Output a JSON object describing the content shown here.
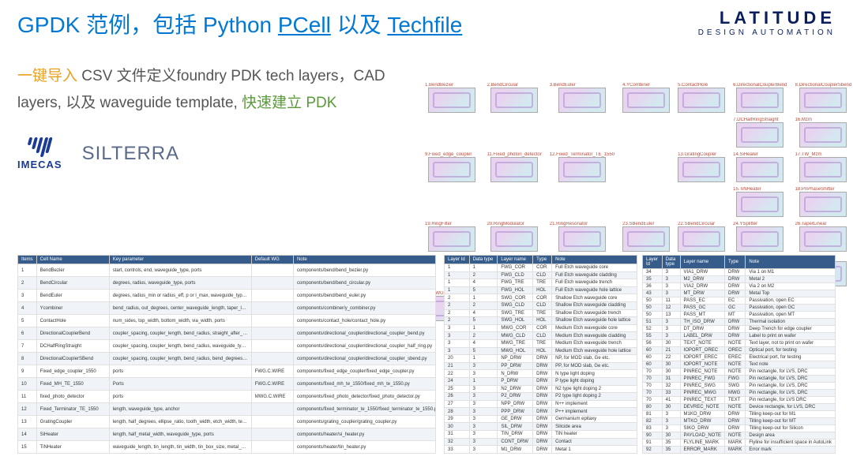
{
  "title_parts": {
    "p1": "GPDK 范例，包括 Python ",
    "p2": "PCell",
    "p3": " 以及 ",
    "p4": "Techfile"
  },
  "logo": {
    "main": "LATITUDE",
    "sub": "DESIGN AUTOMATION"
  },
  "subtitle_parts": {
    "s1": "一键导入",
    "s2": " CSV 文件定义foundry PDK tech layers，CAD layers, 以及 waveguide template, ",
    "s3": "快速建立 PDK"
  },
  "partners": {
    "imecas": "IMECAS",
    "silterra": "SILTERRA"
  },
  "thumbs": [
    "1.BendBezier",
    "2.BendCircular",
    "3.BendEuler",
    "4.YCombiner",
    "5.ContactHole",
    "6.DirectionalCouplerBend",
    "8.DirectionalCouplerSbend",
    "",
    "",
    "",
    "",
    "",
    "7.DCHalfRingStraight",
    "16.Mzm",
    "9.Fixed_edge_coupler",
    "11.Fixed_photon_detector",
    "12.Fixed_Terminator_TE_1550",
    "",
    "13.GratingCoupler",
    "14.SiHeater",
    "17.TW_Mzm",
    "",
    "",
    "",
    "",
    "",
    "15.TiNHeater",
    "18.PnPhaseShifter",
    "19.RingFilter",
    "20.RingModulator",
    "21.RingResonator",
    "23.SBendEuler",
    "22.SBendCircular",
    "24.YSplitter",
    "26.TaperLinear",
    "",
    "",
    "",
    "",
    "",
    "",
    "27.TaperParabolic",
    "28.MWG2MWGTransition",
    "29.FWG2SWGTransition",
    "30.SWG2MWGTransition",
    "",
    "31.CompScan",
    "32.HFanout",
    ""
  ],
  "table1_headers": [
    "Items",
    "Cell Name",
    "Key parameter",
    "Default WG",
    "Note"
  ],
  "table1_rows": [
    [
      "1",
      "BendBezier",
      "start, controls, end, waveguide_type, ports",
      "",
      "components/bend/bend_bezier.py"
    ],
    [
      "2",
      "BendCircular",
      "degrees, radius, waveguide_type, ports",
      "",
      "components/bend/bend_circular.py"
    ],
    [
      "3",
      "BendEuler",
      "degrees, radius_min or radius_eff, p or l_max, waveguide_type, ports",
      "",
      "components/bend/bend_euler.py"
    ],
    [
      "4",
      "Ycombiner",
      "bend_radius, out_degrees, center_waveguide_length, taper_length, waveguide_type, ports",
      "",
      "components/combiner/y_combiner.py"
    ],
    [
      "5",
      "ContactHole",
      "num_sides, top_width, bottom_width, via_width, ports",
      "",
      "components/contact_hole/contact_hole.py"
    ],
    [
      "6",
      "DirectionalCouplerBend",
      "coupler_spacing, coupler_length, bend_radius, straight_after_bend, waveguide_type, ports",
      "",
      "components/directional_coupler/directional_coupler_bend.py"
    ],
    [
      "7",
      "DCHalfRingStraight",
      "coupler_spacing, coupler_length, bend_radius, waveguide_type, ports",
      "",
      "components/directional_coupler/directional_coupler_half_ring.py"
    ],
    [
      "8",
      "DirectionalCouplerSBend",
      "coupler_spacing, coupler_length, bend_radius, bend_degrees, straight_after_bend, waveguide_type, ports",
      "",
      "components/directional_coupler/directional_coupler_sbend.py"
    ],
    [
      "9",
      "Fixed_edge_coupler_1550",
      "ports",
      "FWG.C.WIRE",
      "components/fixed_edge_coupler/fixed_edge_coupler.py"
    ],
    [
      "10",
      "Fixed_MH_TE_1550",
      "Ports",
      "FWG.C.WIRE",
      "components/fixed_mh_te_1550/fixed_mh_te_1550.py"
    ],
    [
      "11",
      "fixed_photo_detector",
      "ports",
      "MWG.C.WIRE",
      "components/fixed_photo_detector/fixed_photo_detector.py"
    ],
    [
      "12",
      "Fixed_Terminator_TE_1550",
      "length, waveguide_type, anchor",
      "",
      "components/fixed_terminator_te_1550/fixed_terminator_te_1550.py"
    ],
    [
      "13",
      "GratingCoupler",
      "length, half_degrees, ellipse_ratio, tooth_width, etch_width, teeth, waveguide_type, ports",
      "",
      "components/grating_coupler/grating_coupler.py"
    ],
    [
      "14",
      "SiHeater",
      "length, half_metal_width, waveguide_type, ports",
      "",
      "components/heater/si_heater.py"
    ],
    [
      "15",
      "TiNHeater",
      "waveguide_length, tin_length, tin_width, tin_box_size, metal_box_size, contact_box_size, waveguide_type, ports",
      "",
      "components/heater/tin_heater.py"
    ]
  ],
  "table2_headers": [
    "Layer Id",
    "Data type",
    "Layer name",
    "Type",
    "Note"
  ],
  "table2a_rows": [
    [
      "1",
      "1",
      "FWG_COR",
      "COR",
      "Full Etch waveguide core"
    ],
    [
      "1",
      "2",
      "FWG_CLD",
      "CLD",
      "Full Etch waveguide cladding"
    ],
    [
      "1",
      "4",
      "FWG_TRE",
      "TRE",
      "Full Etch waveguide trench"
    ],
    [
      "1",
      "5",
      "FWG_HOL",
      "HOL",
      "Full Etch waveguide hole lattice"
    ],
    [
      "2",
      "1",
      "SWG_COR",
      "COR",
      "Shallow Etch waveguide core"
    ],
    [
      "2",
      "2",
      "SWG_CLD",
      "CLD",
      "Shallow Etch waveguide cladding"
    ],
    [
      "2",
      "4",
      "SWG_TRE",
      "TRE",
      "Shallow Etch waveguide trench"
    ],
    [
      "2",
      "5",
      "SWG_HOL",
      "HOL",
      "Shallow Etch waveguide hole lattice"
    ],
    [
      "3",
      "1",
      "MWG_COR",
      "COR",
      "Medium Etch waveguide core"
    ],
    [
      "3",
      "2",
      "MWG_CLD",
      "CLD",
      "Medium Etch waveguide cladding"
    ],
    [
      "3",
      "4",
      "MWG_TRE",
      "TRE",
      "Medium Etch waveguide trench"
    ],
    [
      "3",
      "5",
      "MWG_HOL",
      "HOL",
      "Medium Etch waveguide hole lattice"
    ],
    [
      "20",
      "1",
      "NP_DRW",
      "DRW",
      "NP, for MOD slab, Ge etc."
    ],
    [
      "21",
      "3",
      "PP_DRW",
      "DRW",
      "PP, for MOD slab, Ge etc."
    ],
    [
      "22",
      "3",
      "N_DRW",
      "DRW",
      "N type light doping"
    ],
    [
      "24",
      "1",
      "P_DRW",
      "DRW",
      "P type light doping"
    ],
    [
      "25",
      "3",
      "N2_DRW",
      "DRW",
      "N2 type light doping 2"
    ],
    [
      "26",
      "3",
      "P2_DRW",
      "DRW",
      "P2 type light doping 2"
    ],
    [
      "27",
      "3",
      "NPP_DRW",
      "DRW",
      "N++ implement"
    ],
    [
      "28",
      "3",
      "PPP_DRW",
      "DRW",
      "P++ implement"
    ],
    [
      "29",
      "3",
      "GE_DRW",
      "DRW",
      "Germanium epitaxy"
    ],
    [
      "30",
      "3",
      "SIL_DRW",
      "DRW",
      "Silicide area"
    ],
    [
      "31",
      "3",
      "TIN_DRW",
      "DRW",
      "TiN heater"
    ],
    [
      "32",
      "3",
      "CONT_DRW",
      "DRW",
      "Contact"
    ],
    [
      "33",
      "3",
      "M1_DRW",
      "DRW",
      "Metal 1"
    ]
  ],
  "table2b_rows": [
    [
      "34",
      "3",
      "VIA1_DRW",
      "DRW",
      "Via 1 on M1"
    ],
    [
      "35",
      "3",
      "M2_DRW",
      "DRW",
      "Metal 2"
    ],
    [
      "36",
      "3",
      "VIA2_DRW",
      "DRW",
      "Via 2 on M2"
    ],
    [
      "43",
      "3",
      "MT_DRW",
      "DRW",
      "Metal Top"
    ],
    [
      "50",
      "11",
      "PASS_EC",
      "EC",
      "Passivation, open EC"
    ],
    [
      "50",
      "12",
      "PASS_GC",
      "GC",
      "Passivation, open GC"
    ],
    [
      "50",
      "13",
      "PASS_MT",
      "MT",
      "Passivation, open MT"
    ],
    [
      "51",
      "3",
      "TH_ISO_DRW",
      "DRW",
      "Thermal isolation"
    ],
    [
      "52",
      "3",
      "DT_DRW",
      "DRW",
      "Deep Trench for edge coupler"
    ],
    [
      "55",
      "3",
      "LABEL_DRW",
      "DRW",
      "Label to print on wafer"
    ],
    [
      "56",
      "30",
      "TEXT_NOTE",
      "NOTE",
      "Text layer, not to print on wafer"
    ],
    [
      "60",
      "21",
      "IOPORT_OREC",
      "OREC",
      "Optical port, for testing"
    ],
    [
      "60",
      "22",
      "IOPORT_EREC",
      "EREC",
      "Electrical port, for testing"
    ],
    [
      "60",
      "30",
      "IOPORT_NOTE",
      "NOTE",
      "Text note"
    ],
    [
      "70",
      "30",
      "PINREC_NOTE",
      "NOTE",
      "Pin rectangle, for LVS, DRC"
    ],
    [
      "70",
      "31",
      "PINREC_FWG",
      "FWG",
      "Pin rectangle, for LVS, DRC"
    ],
    [
      "70",
      "32",
      "PINREC_SWG",
      "SWG",
      "Pin rectangle, for LVS, DRC"
    ],
    [
      "70",
      "33",
      "PINREC_MWG",
      "MWG",
      "Pin rectangle, for LVS, DRC"
    ],
    [
      "70",
      "41",
      "PINREC_TEXT",
      "TEXT",
      "Pin rectangle, for LVS DRC"
    ],
    [
      "80",
      "30",
      "DEVREC_NOTE",
      "NOTE",
      "Device rectangle, for LVS, DRC"
    ],
    [
      "81",
      "3",
      "M1KO_DRW",
      "DRW",
      "Tilling keep-out for M1"
    ],
    [
      "82",
      "3",
      "MTKO_DRW",
      "DRW",
      "Tilling keep-out for MT"
    ],
    [
      "83",
      "3",
      "SIKO_DRW",
      "DRW",
      "Tilling keep-out for Silicon"
    ],
    [
      "90",
      "30",
      "PAYLOAD_NOTE",
      "NOTE",
      "Design area"
    ],
    [
      "91",
      "35",
      "FLYLINE_MARK",
      "MARK",
      "Flyline for insufficient space in AutoLink"
    ],
    [
      "92",
      "35",
      "ERROR_MARK",
      "MARK",
      "Error mark"
    ]
  ]
}
